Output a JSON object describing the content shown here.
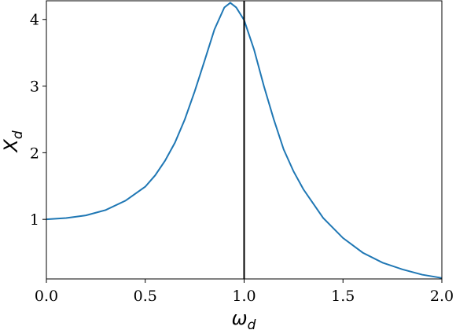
{
  "chart_data": {
    "type": "line",
    "xlabel": {
      "text": "ω",
      "subscript": "d"
    },
    "ylabel": {
      "text": "X",
      "subscript": "d"
    },
    "x": [
      0,
      0.1,
      0.2,
      0.3,
      0.4,
      0.5,
      0.55,
      0.6,
      0.65,
      0.7,
      0.75,
      0.8,
      0.85,
      0.9,
      0.93,
      0.96,
      1.0,
      1.05,
      1.1,
      1.15,
      1.2,
      1.25,
      1.3,
      1.4,
      1.5,
      1.6,
      1.7,
      1.8,
      1.9,
      2.0
    ],
    "series": [
      {
        "color": "#1f77b4",
        "values": [
          1.0,
          1.02,
          1.06,
          1.14,
          1.28,
          1.49,
          1.66,
          1.88,
          2.15,
          2.5,
          2.92,
          3.38,
          3.85,
          4.18,
          4.25,
          4.18,
          3.99,
          3.55,
          3.0,
          2.5,
          2.05,
          1.72,
          1.45,
          1.02,
          0.72,
          0.5,
          0.35,
          0.25,
          0.17,
          0.12
        ]
      }
    ],
    "xlim": [
      0,
      2
    ],
    "ylim": [
      0.106,
      4.28
    ],
    "xticks": [
      {
        "value": 0,
        "label": "0.0"
      },
      0.5,
      {
        "value": 1,
        "label": "1.0"
      },
      1.5,
      {
        "value": 2,
        "label": "2.0"
      }
    ],
    "yticks": [
      1,
      2,
      3,
      4
    ],
    "vline": {
      "x": 1,
      "color": "#000000"
    }
  }
}
